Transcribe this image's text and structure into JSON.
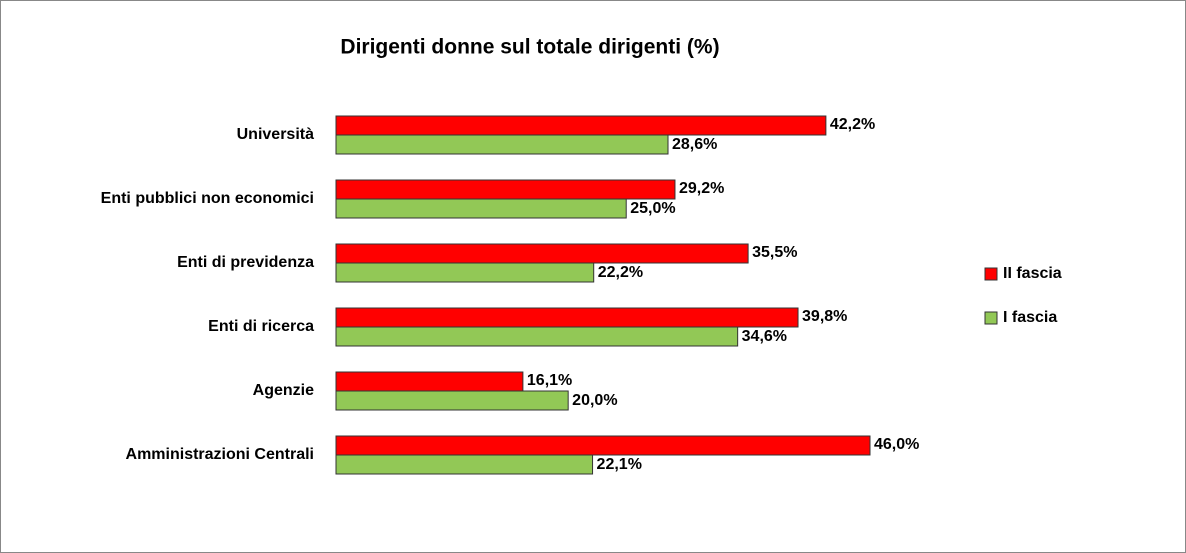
{
  "chart_data": {
    "type": "hbar",
    "title": "Dirigenti donne sul totale dirigenti (%)",
    "categories": [
      "Università",
      "Enti pubblici non economici",
      "Enti di previdenza",
      "Enti di ricerca",
      "Agenzie",
      "Amministrazioni Centrali"
    ],
    "series": [
      {
        "name": "II fascia",
        "color": "#ff0000",
        "values": [
          42.2,
          29.2,
          35.5,
          39.8,
          16.1,
          46.0
        ],
        "value_labels": [
          "42,2%",
          "29,2%",
          "35,5%",
          "39,8%",
          "16,1%",
          "46,0%"
        ]
      },
      {
        "name": "I fascia",
        "color": "#92c856",
        "values": [
          28.6,
          25.0,
          22.2,
          34.6,
          20.0,
          22.1
        ],
        "value_labels": [
          "28,6%",
          "25,0%",
          "22,2%",
          "34,6%",
          "20,0%",
          "22,1%"
        ]
      }
    ],
    "legend": "right"
  }
}
